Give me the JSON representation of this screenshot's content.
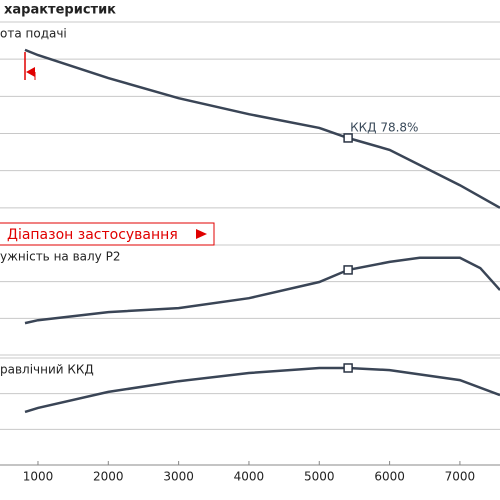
{
  "chart_data": [
    {
      "type": "line",
      "title": "характеристик",
      "ylabel": "ота подачі",
      "range_label": "Діапазон застосування",
      "x": [
        815,
        1000,
        2000,
        3000,
        4000,
        5000,
        5410,
        6000,
        7000,
        7570
      ],
      "series": [
        {
          "color": "#3a4556",
          "values": [
            5.25,
            5.11,
            4.49,
            3.95,
            3.52,
            3.15,
            2.88,
            2.56,
            1.61,
            1.0
          ]
        }
      ],
      "markers": [
        {
          "x": 5410,
          "y": 2.88,
          "label": "ККД   78.8%"
        }
      ],
      "xlim": [
        460,
        7570
      ],
      "ylim": [
        0,
        6
      ],
      "yticks": [
        0,
        1,
        2,
        3,
        4,
        5,
        6
      ],
      "grid": true
    },
    {
      "type": "line",
      "ylabel": "ужність на валу  P2",
      "x": [
        815,
        1000,
        2000,
        3000,
        4000,
        5000,
        5410,
        6000,
        6430,
        7000,
        7290,
        7570
      ],
      "series": [
        {
          "color": "#3a4556",
          "values": [
            0.87,
            0.95,
            1.17,
            1.28,
            1.55,
            1.99,
            2.32,
            2.54,
            2.65,
            2.65,
            2.37,
            1.77
          ]
        }
      ],
      "markers": [
        {
          "x": 5410,
          "y": 2.32
        }
      ],
      "xlim": [
        460,
        7570
      ],
      "ylim": [
        0,
        3
      ],
      "yticks": [
        0,
        1,
        2,
        3
      ],
      "grid": true
    },
    {
      "type": "line",
      "ylabel": "равлічний ККД",
      "x": [
        815,
        1000,
        2000,
        3000,
        4000,
        5000,
        5410,
        6000,
        7000,
        7570
      ],
      "series": [
        {
          "color": "#3a4556",
          "values": [
            1.49,
            1.6,
            2.05,
            2.35,
            2.58,
            2.72,
            2.72,
            2.66,
            2.38,
            1.96
          ]
        }
      ],
      "markers": [
        {
          "x": 5410,
          "y": 2.72
        }
      ],
      "xlim": [
        460,
        7570
      ],
      "ylim": [
        0,
        3
      ],
      "yticks": [
        0,
        1,
        2,
        3
      ],
      "grid": true,
      "xticks": [
        1000,
        2000,
        3000,
        4000,
        5000,
        6000,
        7000
      ]
    }
  ]
}
